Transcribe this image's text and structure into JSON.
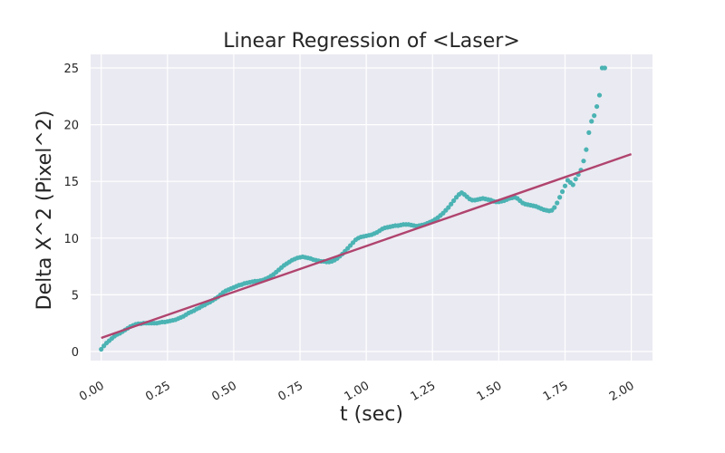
{
  "chart_data": {
    "type": "scatter",
    "title": "Linear Regression of <Laser>",
    "xlabel": "t (sec)",
    "ylabel": "Delta X^2 (Pixel^2)",
    "xlim": [
      -0.04,
      2.08
    ],
    "ylim": [
      -0.8,
      26.2
    ],
    "x_ticks": [
      0.0,
      0.25,
      0.5,
      0.75,
      1.0,
      1.25,
      1.5,
      1.75,
      2.0
    ],
    "x_tick_labels": [
      "0.00",
      "0.25",
      "0.50",
      "0.75",
      "1.00",
      "1.25",
      "1.50",
      "1.75",
      "2.00"
    ],
    "y_ticks": [
      0,
      5,
      10,
      15,
      20,
      25
    ],
    "y_tick_labels": [
      "0",
      "5",
      "10",
      "15",
      "20",
      "25"
    ],
    "grid": true,
    "legend": "none",
    "colors": {
      "background": "#eaeaf2",
      "grid": "#ffffff",
      "points": "#4bb3b3",
      "fit_line": "#b0446e"
    },
    "series": [
      {
        "kind": "points",
        "points": [
          [
            0.0,
            0.2
          ],
          [
            0.01,
            0.5
          ],
          [
            0.02,
            0.75
          ],
          [
            0.03,
            0.95
          ],
          [
            0.04,
            1.15
          ],
          [
            0.05,
            1.35
          ],
          [
            0.06,
            1.5
          ],
          [
            0.07,
            1.6
          ],
          [
            0.08,
            1.75
          ],
          [
            0.09,
            1.9
          ],
          [
            0.1,
            2.05
          ],
          [
            0.11,
            2.2
          ],
          [
            0.12,
            2.3
          ],
          [
            0.13,
            2.4
          ],
          [
            0.14,
            2.45
          ],
          [
            0.15,
            2.45
          ],
          [
            0.16,
            2.5
          ],
          [
            0.17,
            2.5
          ],
          [
            0.18,
            2.5
          ],
          [
            0.19,
            2.5
          ],
          [
            0.2,
            2.5
          ],
          [
            0.21,
            2.5
          ],
          [
            0.22,
            2.55
          ],
          [
            0.23,
            2.6
          ],
          [
            0.24,
            2.6
          ],
          [
            0.25,
            2.65
          ],
          [
            0.26,
            2.7
          ],
          [
            0.27,
            2.75
          ],
          [
            0.28,
            2.8
          ],
          [
            0.29,
            2.9
          ],
          [
            0.3,
            3.0
          ],
          [
            0.31,
            3.1
          ],
          [
            0.32,
            3.25
          ],
          [
            0.33,
            3.4
          ],
          [
            0.34,
            3.5
          ],
          [
            0.35,
            3.6
          ],
          [
            0.36,
            3.75
          ],
          [
            0.37,
            3.85
          ],
          [
            0.38,
            4.0
          ],
          [
            0.39,
            4.1
          ],
          [
            0.4,
            4.25
          ],
          [
            0.41,
            4.35
          ],
          [
            0.42,
            4.5
          ],
          [
            0.43,
            4.65
          ],
          [
            0.44,
            4.8
          ],
          [
            0.45,
            5.0
          ],
          [
            0.46,
            5.2
          ],
          [
            0.47,
            5.35
          ],
          [
            0.48,
            5.45
          ],
          [
            0.49,
            5.55
          ],
          [
            0.5,
            5.65
          ],
          [
            0.51,
            5.75
          ],
          [
            0.52,
            5.85
          ],
          [
            0.53,
            5.9
          ],
          [
            0.54,
            6.0
          ],
          [
            0.55,
            6.05
          ],
          [
            0.56,
            6.1
          ],
          [
            0.57,
            6.15
          ],
          [
            0.58,
            6.2
          ],
          [
            0.59,
            6.2
          ],
          [
            0.6,
            6.25
          ],
          [
            0.61,
            6.3
          ],
          [
            0.62,
            6.4
          ],
          [
            0.63,
            6.5
          ],
          [
            0.64,
            6.65
          ],
          [
            0.65,
            6.8
          ],
          [
            0.66,
            7.0
          ],
          [
            0.67,
            7.2
          ],
          [
            0.68,
            7.4
          ],
          [
            0.69,
            7.6
          ],
          [
            0.7,
            7.75
          ],
          [
            0.71,
            7.9
          ],
          [
            0.72,
            8.05
          ],
          [
            0.73,
            8.15
          ],
          [
            0.74,
            8.25
          ],
          [
            0.75,
            8.3
          ],
          [
            0.76,
            8.35
          ],
          [
            0.77,
            8.3
          ],
          [
            0.78,
            8.25
          ],
          [
            0.79,
            8.2
          ],
          [
            0.8,
            8.1
          ],
          [
            0.81,
            8.05
          ],
          [
            0.82,
            8.0
          ],
          [
            0.83,
            7.95
          ],
          [
            0.84,
            7.95
          ],
          [
            0.85,
            7.9
          ],
          [
            0.86,
            7.9
          ],
          [
            0.87,
            7.95
          ],
          [
            0.88,
            8.05
          ],
          [
            0.89,
            8.2
          ],
          [
            0.9,
            8.4
          ],
          [
            0.91,
            8.6
          ],
          [
            0.92,
            8.85
          ],
          [
            0.93,
            9.1
          ],
          [
            0.94,
            9.35
          ],
          [
            0.95,
            9.6
          ],
          [
            0.96,
            9.85
          ],
          [
            0.97,
            10.0
          ],
          [
            0.98,
            10.1
          ],
          [
            0.99,
            10.15
          ],
          [
            1.0,
            10.2
          ],
          [
            1.01,
            10.25
          ],
          [
            1.02,
            10.3
          ],
          [
            1.03,
            10.4
          ],
          [
            1.04,
            10.5
          ],
          [
            1.05,
            10.65
          ],
          [
            1.06,
            10.8
          ],
          [
            1.07,
            10.9
          ],
          [
            1.08,
            10.95
          ],
          [
            1.09,
            11.0
          ],
          [
            1.1,
            11.05
          ],
          [
            1.11,
            11.1
          ],
          [
            1.12,
            11.1
          ],
          [
            1.13,
            11.15
          ],
          [
            1.14,
            11.2
          ],
          [
            1.15,
            11.2
          ],
          [
            1.16,
            11.2
          ],
          [
            1.17,
            11.15
          ],
          [
            1.18,
            11.1
          ],
          [
            1.19,
            11.05
          ],
          [
            1.2,
            11.1
          ],
          [
            1.21,
            11.15
          ],
          [
            1.22,
            11.2
          ],
          [
            1.23,
            11.3
          ],
          [
            1.24,
            11.4
          ],
          [
            1.25,
            11.5
          ],
          [
            1.26,
            11.65
          ],
          [
            1.27,
            11.8
          ],
          [
            1.28,
            12.0
          ],
          [
            1.29,
            12.2
          ],
          [
            1.3,
            12.45
          ],
          [
            1.31,
            12.7
          ],
          [
            1.32,
            13.0
          ],
          [
            1.33,
            13.3
          ],
          [
            1.34,
            13.6
          ],
          [
            1.35,
            13.85
          ],
          [
            1.36,
            14.0
          ],
          [
            1.37,
            13.85
          ],
          [
            1.38,
            13.65
          ],
          [
            1.39,
            13.45
          ],
          [
            1.4,
            13.35
          ],
          [
            1.41,
            13.35
          ],
          [
            1.42,
            13.4
          ],
          [
            1.43,
            13.45
          ],
          [
            1.44,
            13.5
          ],
          [
            1.45,
            13.45
          ],
          [
            1.46,
            13.4
          ],
          [
            1.47,
            13.35
          ],
          [
            1.48,
            13.25
          ],
          [
            1.49,
            13.2
          ],
          [
            1.5,
            13.2
          ],
          [
            1.51,
            13.25
          ],
          [
            1.52,
            13.3
          ],
          [
            1.53,
            13.4
          ],
          [
            1.54,
            13.5
          ],
          [
            1.55,
            13.55
          ],
          [
            1.56,
            13.6
          ],
          [
            1.57,
            13.5
          ],
          [
            1.58,
            13.3
          ],
          [
            1.59,
            13.1
          ],
          [
            1.6,
            13.0
          ],
          [
            1.61,
            12.95
          ],
          [
            1.62,
            12.9
          ],
          [
            1.63,
            12.85
          ],
          [
            1.64,
            12.8
          ],
          [
            1.65,
            12.7
          ],
          [
            1.66,
            12.6
          ],
          [
            1.67,
            12.5
          ],
          [
            1.68,
            12.45
          ],
          [
            1.69,
            12.4
          ],
          [
            1.7,
            12.45
          ],
          [
            1.71,
            12.7
          ],
          [
            1.72,
            13.1
          ],
          [
            1.73,
            13.6
          ],
          [
            1.74,
            14.1
          ],
          [
            1.75,
            14.6
          ],
          [
            1.76,
            15.1
          ],
          [
            1.77,
            14.9
          ],
          [
            1.78,
            14.7
          ],
          [
            1.79,
            15.2
          ],
          [
            1.8,
            15.6
          ],
          [
            1.81,
            16.0
          ],
          [
            1.82,
            16.8
          ],
          [
            1.83,
            17.8
          ],
          [
            1.84,
            19.3
          ],
          [
            1.85,
            20.3
          ],
          [
            1.86,
            20.8
          ],
          [
            1.87,
            21.6
          ],
          [
            1.88,
            22.6
          ],
          [
            1.89,
            25.0
          ],
          [
            1.9,
            25.0
          ]
        ]
      },
      {
        "kind": "fit_line",
        "x": [
          0.0,
          2.0
        ],
        "y": [
          1.2,
          17.4
        ]
      }
    ]
  }
}
